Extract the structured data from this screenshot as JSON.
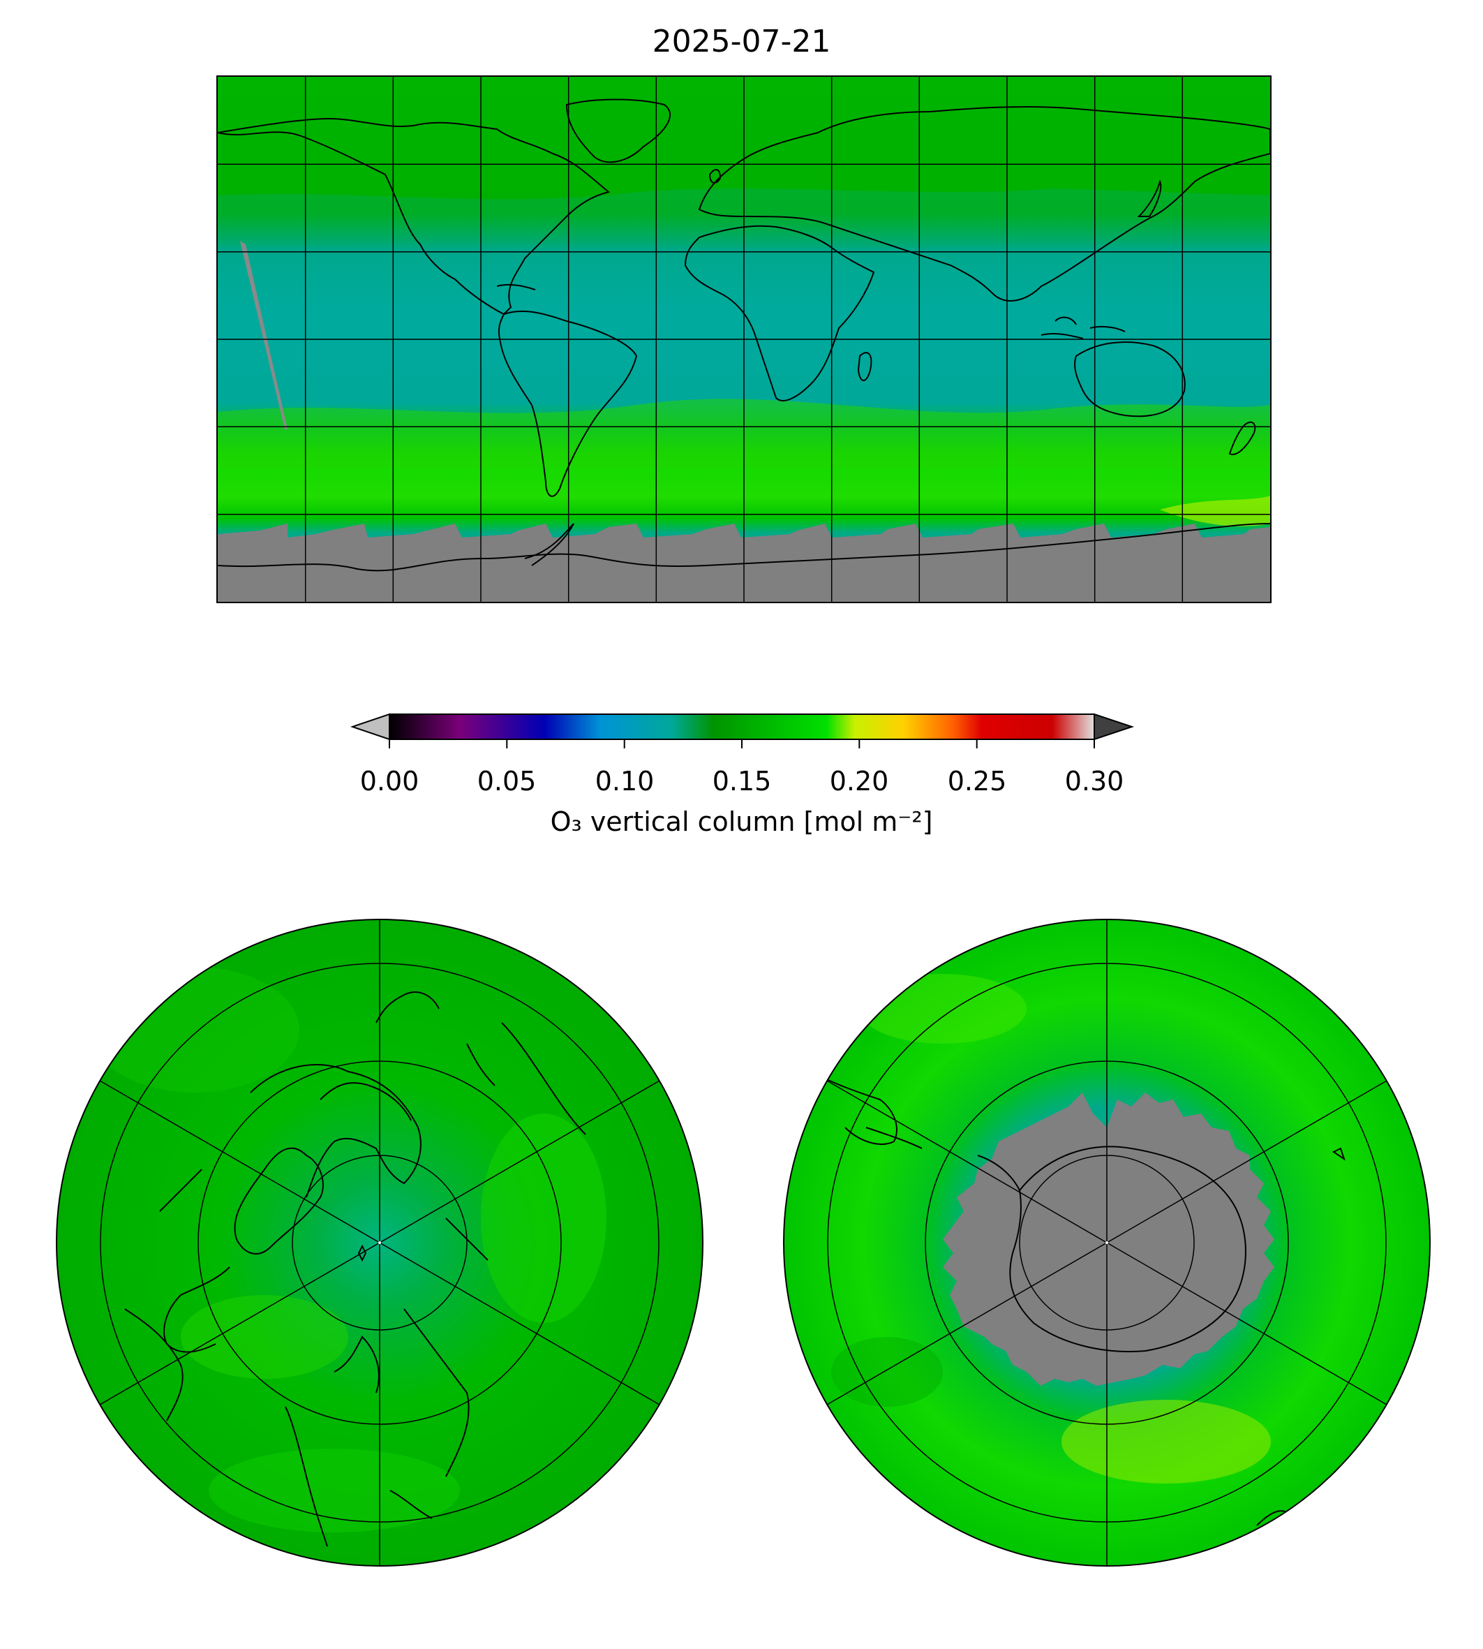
{
  "title": "2025-07-21",
  "colorbar": {
    "label": "O₃ vertical column [mol m⁻²]",
    "ticks": [
      "0.00",
      "0.05",
      "0.10",
      "0.15",
      "0.20",
      "0.25",
      "0.30"
    ],
    "range": [
      0.0,
      0.3
    ],
    "extend": "both",
    "colormap_stops": [
      "#000000",
      "#7a007a",
      "#0000b4",
      "#0094d6",
      "#00a89a",
      "#009400",
      "#00e000",
      "#c8f000",
      "#ffd000",
      "#ff6000",
      "#e00000",
      "#d8d8d8"
    ]
  },
  "maps": [
    {
      "name": "global",
      "projection": "equirectangular",
      "gridlines": "30°",
      "nodata_color": "#808080"
    },
    {
      "name": "north-pole",
      "projection": "north-polar-stereographic"
    },
    {
      "name": "south-pole",
      "projection": "south-polar-stereographic"
    }
  ],
  "colors": {
    "high_lat_green": "#00b800",
    "tropic_teal": "#00a89a",
    "nodata_gray": "#808080"
  }
}
